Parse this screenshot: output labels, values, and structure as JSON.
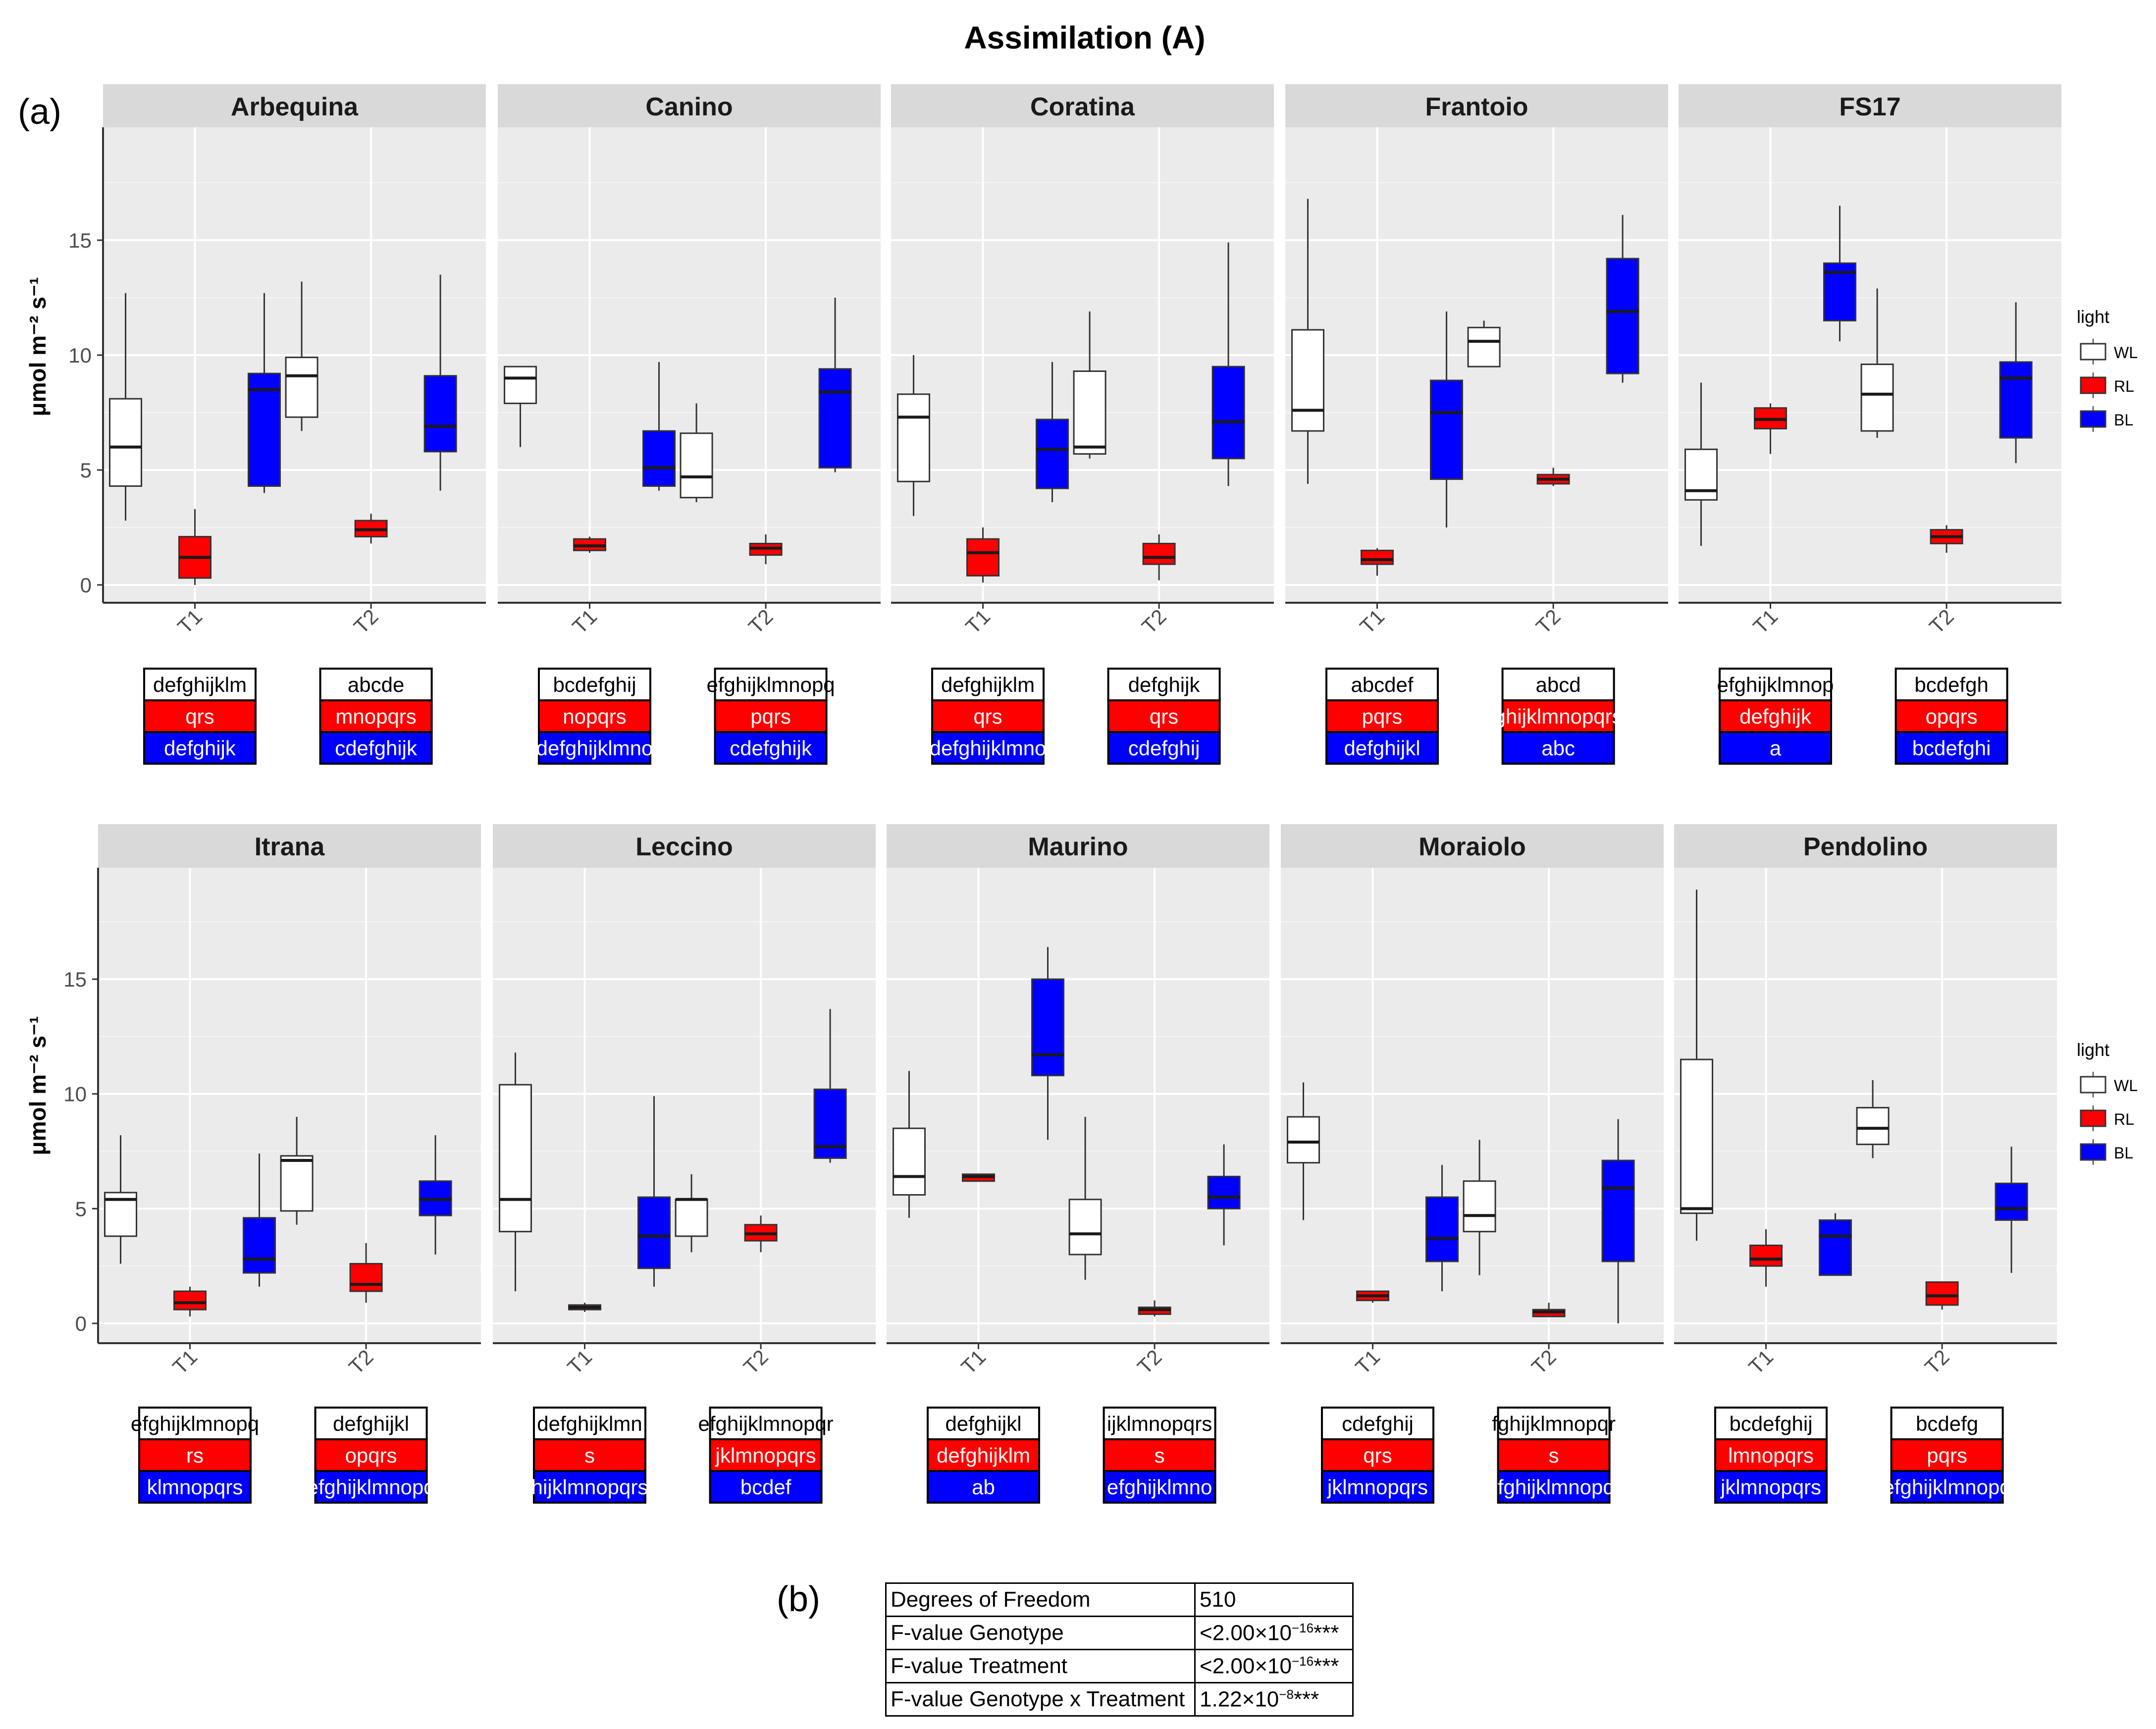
{
  "title": "Assimilation (A)",
  "panel_label_a": "(a)",
  "panel_label_b": "(b)",
  "colors": {
    "WL": "#ffffff",
    "RL": "#ff0000",
    "BL": "#0000ff",
    "strip": "#d9d9d9",
    "panel": "#ebebeb",
    "grid": "#ffffff"
  },
  "chart_data": {
    "type": "boxplot",
    "title": "Assimilation (A)",
    "ylabel": "μmol m⁻² s⁻¹",
    "ylim": [
      -1,
      20
    ],
    "yticks": [
      0,
      5,
      10,
      15
    ],
    "categories": [
      "T1",
      "T2"
    ],
    "legend": {
      "title": "light",
      "entries": [
        "WL",
        "RL",
        "BL"
      ],
      "position": "right"
    },
    "facets": [
      {
        "name": "Arbequina",
        "boxes": {
          "T1": {
            "WL": [
              2.8,
              4.3,
              6.0,
              8.1,
              12.7
            ],
            "RL": [
              0.0,
              0.3,
              1.2,
              2.1,
              3.3
            ],
            "BL": [
              4.0,
              4.3,
              8.5,
              9.2,
              12.7
            ]
          },
          "T2": {
            "WL": [
              6.7,
              7.3,
              9.1,
              9.9,
              13.2
            ],
            "RL": [
              1.8,
              2.1,
              2.4,
              2.8,
              3.1
            ],
            "BL": [
              4.1,
              5.8,
              6.9,
              9.1,
              13.5
            ]
          }
        },
        "letters": {
          "T1": [
            "defghijklm",
            "qrs",
            "defghijk"
          ],
          "T2": [
            "abcde",
            "mnopqrs",
            "cdefghijk"
          ]
        }
      },
      {
        "name": "Canino",
        "boxes": {
          "T1": {
            "WL": [
              6.0,
              7.9,
              9.0,
              9.5,
              9.5
            ],
            "RL": [
              1.4,
              1.5,
              1.7,
              2.0,
              2.1
            ],
            "BL": [
              4.1,
              4.3,
              5.1,
              6.7,
              9.7
            ]
          },
          "T2": {
            "WL": [
              3.6,
              3.8,
              4.7,
              6.6,
              7.9
            ],
            "RL": [
              0.9,
              1.3,
              1.6,
              1.8,
              2.2
            ],
            "BL": [
              4.9,
              5.1,
              8.4,
              9.4,
              12.5
            ]
          }
        },
        "letters": {
          "T1": [
            "bcdefghij",
            "nopqrs",
            "defghijklmno"
          ],
          "T2": [
            "efghijklmnopq",
            "pqrs",
            "cdefghijk"
          ]
        }
      },
      {
        "name": "Coratina",
        "boxes": {
          "T1": {
            "WL": [
              3.0,
              4.5,
              7.3,
              8.3,
              10.0
            ],
            "RL": [
              0.1,
              0.4,
              1.4,
              2.0,
              2.5
            ],
            "BL": [
              3.6,
              4.2,
              5.9,
              7.2,
              9.7
            ]
          },
          "T2": {
            "WL": [
              5.5,
              5.7,
              6.0,
              9.3,
              11.9
            ],
            "RL": [
              0.2,
              0.9,
              1.2,
              1.8,
              2.2
            ],
            "BL": [
              4.3,
              5.5,
              7.1,
              9.5,
              14.9
            ]
          }
        },
        "letters": {
          "T1": [
            "defghijklm",
            "qrs",
            "defghijklmno"
          ],
          "T2": [
            "defghijk",
            "qrs",
            "cdefghij"
          ]
        }
      },
      {
        "name": "Frantoio",
        "boxes": {
          "T1": {
            "WL": [
              4.4,
              6.7,
              7.6,
              11.1,
              16.8
            ],
            "RL": [
              0.4,
              0.9,
              1.1,
              1.5,
              1.6
            ],
            "BL": [
              2.5,
              4.6,
              7.5,
              8.9,
              11.9
            ]
          },
          "T2": {
            "WL": [
              9.5,
              9.5,
              10.6,
              11.2,
              11.5
            ],
            "RL": [
              4.3,
              4.4,
              4.6,
              4.8,
              5.1
            ],
            "BL": [
              8.8,
              9.2,
              11.9,
              14.2,
              16.1
            ]
          }
        },
        "letters": {
          "T1": [
            "abcdef",
            "pqrs",
            "defghijkl"
          ],
          "T2": [
            "abcd",
            "ghijklmnopqrs",
            "abc"
          ]
        }
      },
      {
        "name": "FS17",
        "boxes": {
          "T1": {
            "WL": [
              1.7,
              3.7,
              4.1,
              5.9,
              8.8
            ],
            "RL": [
              5.7,
              6.8,
              7.2,
              7.7,
              7.9
            ],
            "BL": [
              10.6,
              11.5,
              13.6,
              14.0,
              16.5
            ]
          },
          "T2": {
            "WL": [
              6.4,
              6.7,
              8.3,
              9.6,
              12.9
            ],
            "RL": [
              1.4,
              1.8,
              2.1,
              2.4,
              2.6
            ],
            "BL": [
              5.3,
              6.4,
              9.0,
              9.7,
              12.3
            ]
          }
        },
        "letters": {
          "T1": [
            "efghijklmnop",
            "defghijk",
            "a"
          ],
          "T2": [
            "bcdefgh",
            "opqrs",
            "bcdefghi"
          ]
        }
      },
      {
        "name": "Itrana",
        "boxes": {
          "T1": {
            "WL": [
              2.6,
              3.8,
              5.4,
              5.7,
              8.2
            ],
            "RL": [
              0.3,
              0.6,
              0.9,
              1.4,
              1.6
            ],
            "BL": [
              1.6,
              2.2,
              2.8,
              4.6,
              7.4
            ]
          },
          "T2": {
            "WL": [
              4.3,
              4.9,
              7.1,
              7.3,
              9.0
            ],
            "RL": [
              0.9,
              1.4,
              1.7,
              2.6,
              3.5
            ],
            "BL": [
              3.0,
              4.7,
              5.4,
              6.2,
              8.2
            ]
          }
        },
        "letters": {
          "T1": [
            "efghijklmnopq",
            "rs",
            "klmnopqrs"
          ],
          "T2": [
            "defghijkl",
            "opqrs",
            "efghijklmnopq"
          ]
        }
      },
      {
        "name": "Leccino",
        "boxes": {
          "T1": {
            "WL": [
              1.4,
              4.0,
              5.4,
              10.4,
              11.8
            ],
            "RL": [
              0.5,
              0.6,
              0.7,
              0.8,
              0.9
            ],
            "BL": [
              1.6,
              2.4,
              3.8,
              5.5,
              9.9
            ]
          },
          "T2": {
            "WL": [
              3.1,
              3.8,
              5.4,
              5.4,
              6.5
            ],
            "RL": [
              3.1,
              3.6,
              3.9,
              4.3,
              4.7
            ],
            "BL": [
              7.0,
              7.2,
              7.7,
              10.2,
              13.7
            ]
          }
        },
        "letters": {
          "T1": [
            "defghijklmn",
            "s",
            "hijklmnopqrs"
          ],
          "T2": [
            "efghijklmnopqr",
            "jklmnopqrs",
            "bcdef"
          ]
        }
      },
      {
        "name": "Maurino",
        "boxes": {
          "T1": {
            "WL": [
              4.6,
              5.6,
              6.4,
              8.5,
              11.0
            ],
            "RL": [
              6.2,
              6.2,
              6.4,
              6.5,
              6.5
            ],
            "BL": [
              8.0,
              10.8,
              11.7,
              15.0,
              16.4
            ]
          },
          "T2": {
            "WL": [
              1.9,
              3.0,
              3.9,
              5.4,
              9.0
            ],
            "RL": [
              0.3,
              0.4,
              0.6,
              0.7,
              1.0
            ],
            "BL": [
              3.4,
              5.0,
              5.5,
              6.4,
              7.8
            ]
          }
        },
        "letters": {
          "T1": [
            "defghijkl",
            "defghijklm",
            "ab"
          ],
          "T2": [
            "ijklmnopqrs",
            "s",
            "efghijklmno"
          ]
        }
      },
      {
        "name": "Moraiolo",
        "boxes": {
          "T1": {
            "WL": [
              4.5,
              7.0,
              7.9,
              9.0,
              10.5
            ],
            "RL": [
              0.9,
              1.0,
              1.2,
              1.4,
              1.4
            ],
            "BL": [
              1.4,
              2.7,
              3.7,
              5.5,
              6.9
            ]
          },
          "T2": {
            "WL": [
              2.1,
              4.0,
              4.7,
              6.2,
              8.0
            ],
            "RL": [
              0.3,
              0.3,
              0.5,
              0.6,
              0.9
            ],
            "BL": [
              0.0,
              2.7,
              5.9,
              7.1,
              8.9
            ]
          }
        },
        "letters": {
          "T1": [
            "cdefghij",
            "qrs",
            "jklmnopqrs"
          ],
          "T2": [
            "fghijklmnopqr",
            "s",
            "efghijklmnopqr"
          ]
        }
      },
      {
        "name": "Pendolino",
        "boxes": {
          "T1": {
            "WL": [
              3.6,
              4.8,
              5.0,
              11.5,
              18.9
            ],
            "RL": [
              1.6,
              2.5,
              2.8,
              3.4,
              4.1
            ],
            "BL": [
              2.1,
              2.1,
              3.8,
              4.5,
              4.8
            ]
          },
          "T2": {
            "WL": [
              7.2,
              7.8,
              8.5,
              9.4,
              10.6
            ],
            "RL": [
              0.6,
              0.8,
              1.2,
              1.8,
              1.8
            ],
            "BL": [
              2.2,
              4.5,
              5.0,
              6.1,
              7.7
            ]
          }
        },
        "letters": {
          "T1": [
            "bcdefghij",
            "lmnopqrs",
            "jklmnopqrs"
          ],
          "T2": [
            "bcdefg",
            "pqrs",
            "efghijklmnopq"
          ]
        }
      }
    ]
  },
  "stats_table": {
    "rows": [
      {
        "label": "Degrees of Freedom",
        "base": "510",
        "exp": "",
        "stars": ""
      },
      {
        "label": "F-value Genotype",
        "base": "<2.00×10",
        "exp": "−16",
        "stars": "***"
      },
      {
        "label": "F-value Treatment",
        "base": "<2.00×10",
        "exp": "−16",
        "stars": "***"
      },
      {
        "label": "F-value Genotype x Treatment",
        "base": "1.22×10",
        "exp": "−8",
        "stars": "***"
      }
    ]
  }
}
